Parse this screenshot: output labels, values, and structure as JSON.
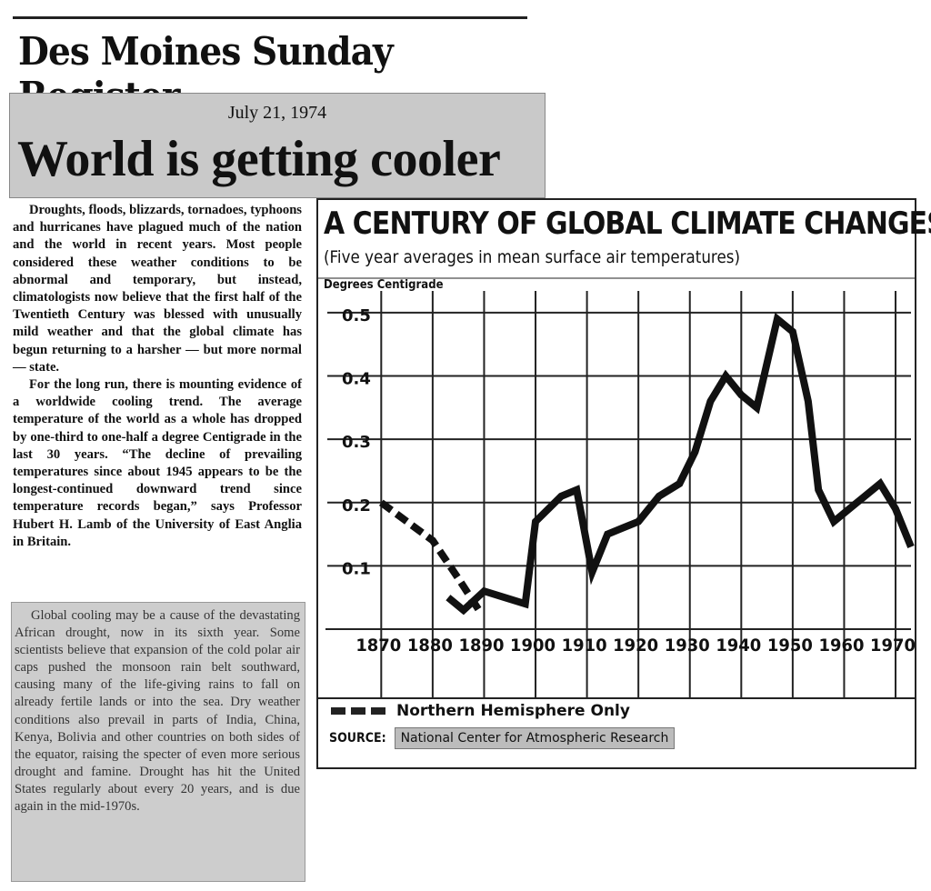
{
  "masthead": {
    "name": "Des Moines Sunday Register"
  },
  "header": {
    "date": "July 21, 1974",
    "headline": "World is getting cooler"
  },
  "article": {
    "paragraphs": [
      "Droughts, floods, blizzards, tornadoes, typhoons and hurricanes have plagued much of the nation and the world in recent years. Most people considered these weather conditions to be abnormal and temporary, but instead, climatologists now believe that the first half of the Twentieth Century was blessed with unusually mild weather and that the global climate has begun returning to a harsher — but more normal — state.",
      "For the long run, there is mounting evidence of a worldwide cooling trend. The average temperature of the world as a whole has dropped by one-third to one-half a degree Centigrade in the last 30 years. “The decline of prevailing temperatures since about 1945 appears to be the longest-continued downward trend since temperature records began,” says Professor Hubert H. Lamb of the University of East Anglia in Britain.",
      "Global cooling may be a cause of the devastating African drought, now in its sixth year. Some scientists believe that expansion of the cold polar air caps pushed the monsoon rain belt southward, causing many of the life-giving rains to fall on already fertile lands or into the sea. Dry weather conditions also prevail in parts of India, China, Kenya, Bolivia and other countries on both sides of the equator, raising the specter of even more serious drought and famine. Drought has hit the United States regularly about every 20 years, and is due again in the mid-1970s."
    ]
  },
  "chart": {
    "source_label": "SOURCE:",
    "source_org": "National Center for Atmospheric Research"
  },
  "chart_data": {
    "type": "line",
    "title": "A CENTURY OF GLOBAL CLIMATE CHANGES",
    "subtitle": "(Five year averages in mean surface air temperatures)",
    "ylabel": "Degrees Centigrade",
    "xlabel": "",
    "x_ticks": [
      "1870",
      "1880",
      "1890",
      "1900",
      "1910",
      "1920",
      "1930",
      "1940",
      "1950",
      "1960",
      "1970"
    ],
    "y_ticks": [
      "0.5",
      "0.4",
      "0.3",
      "0.2",
      "0.1"
    ],
    "xlim": [
      1868,
      1973
    ],
    "ylim": [
      0,
      0.52
    ],
    "grid": true,
    "legend_position": "bottom-left",
    "series": [
      {
        "name": "Northern Hemisphere Only",
        "style": "dashed",
        "x": [
          1870,
          1875,
          1880,
          1885,
          1889
        ],
        "y": [
          0.2,
          0.17,
          0.14,
          0.08,
          0.03
        ]
      },
      {
        "style": "solid",
        "x": [
          1883,
          1886,
          1890,
          1894,
          1898,
          1900,
          1905,
          1908,
          1911,
          1914,
          1917,
          1920,
          1924,
          1928,
          1931,
          1934,
          1937,
          1940,
          1943,
          1947,
          1950,
          1953,
          1955,
          1958,
          1961,
          1964,
          1967,
          1970,
          1973
        ],
        "y": [
          0.05,
          0.03,
          0.06,
          0.05,
          0.04,
          0.17,
          0.21,
          0.22,
          0.09,
          0.15,
          0.16,
          0.17,
          0.21,
          0.23,
          0.28,
          0.36,
          0.4,
          0.37,
          0.35,
          0.49,
          0.47,
          0.36,
          0.22,
          0.17,
          0.19,
          0.21,
          0.23,
          0.19,
          0.13
        ]
      }
    ]
  }
}
